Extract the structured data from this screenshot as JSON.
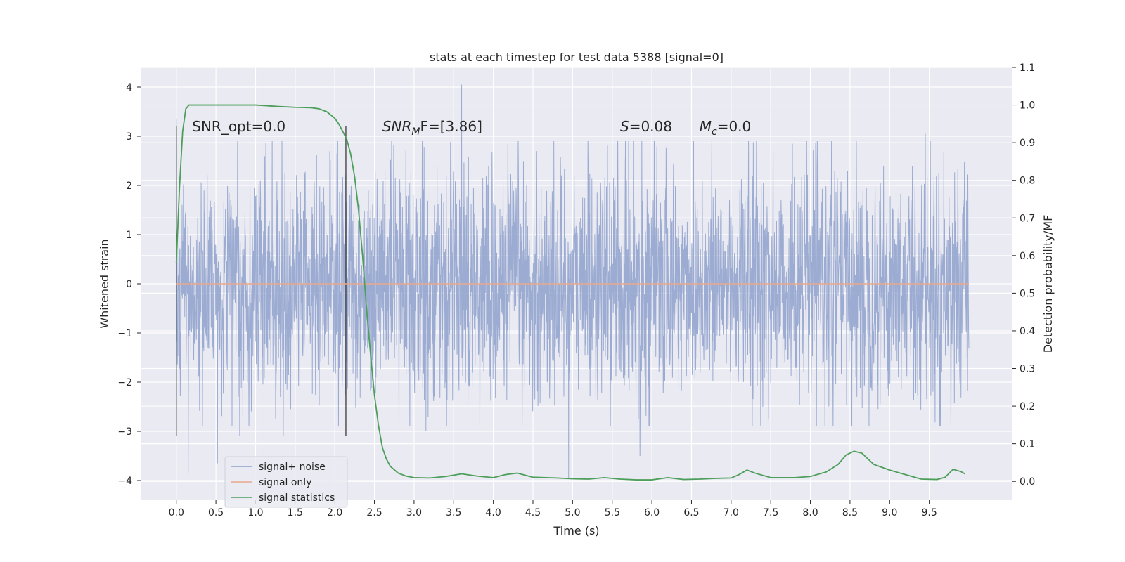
{
  "chart_data": {
    "type": "line",
    "title": "stats at each timestep for test data 5388 [signal=0]",
    "xlabel": "Time (s)",
    "ylabel": "Whitened strain",
    "y2label": "Detection probability/MF",
    "xlim": [
      -0.45,
      10.55
    ],
    "ylim": [
      -4.4,
      4.4
    ],
    "y2lim": [
      -0.05,
      1.1
    ],
    "x_ticks": [
      0.0,
      0.5,
      1.0,
      1.5,
      2.0,
      2.5,
      3.0,
      3.5,
      4.0,
      4.5,
      5.0,
      5.5,
      6.0,
      6.5,
      7.0,
      7.5,
      8.0,
      8.5,
      9.0,
      9.5
    ],
    "x_tick_labels": [
      "0.0",
      "0.5",
      "1.0",
      "1.5",
      "2.0",
      "2.5",
      "3.0",
      "3.5",
      "4.0",
      "4.5",
      "5.0",
      "5.5",
      "6.0",
      "6.5",
      "7.0",
      "7.5",
      "8.0",
      "8.5",
      "9.0",
      "9.5"
    ],
    "y_ticks": [
      -4,
      -3,
      -2,
      -1,
      0,
      1,
      2,
      3,
      4
    ],
    "y_tick_labels": [
      "−4",
      "−3",
      "−2",
      "−1",
      "0",
      "1",
      "2",
      "3",
      "4"
    ],
    "y2_ticks": [
      0.0,
      0.1,
      0.2,
      0.3,
      0.4,
      0.5,
      0.6,
      0.7,
      0.8,
      0.9,
      1.0,
      1.1
    ],
    "y2_tick_labels": [
      "0.0",
      "0.1",
      "0.2",
      "0.3",
      "0.4",
      "0.5",
      "0.6",
      "0.7",
      "0.8",
      "0.9",
      "1.0",
      "1.1"
    ],
    "grid": true,
    "legend": {
      "placement": "lower-left",
      "entries": [
        {
          "name": "signal+ noise",
          "color": "#8da0cb"
        },
        {
          "name": "signal only",
          "color": "#e8a88c"
        },
        {
          "name": "signal statistics",
          "color": "#4c9e5a"
        }
      ]
    },
    "annotations": [
      {
        "prefix": "SNR_opt=0.0",
        "math": "",
        "sub": "",
        "suffix": "",
        "x": 0.2,
        "y": 3.2
      },
      {
        "prefix": "",
        "math": "SNR",
        "sub": "M",
        "suffix": "F=[3.86]",
        "x": 2.6,
        "y": 3.2
      },
      {
        "prefix": "",
        "math": "S",
        "sub": "",
        "suffix": "=0.08",
        "x": 5.6,
        "y": 3.2
      },
      {
        "prefix": "",
        "math": "M",
        "sub": "c",
        "suffix": "=0.0",
        "x": 6.6,
        "y": 3.2
      }
    ],
    "vlines": [
      {
        "x": 0.0,
        "ymin": -3.1,
        "ymax": 3.2
      },
      {
        "x": 2.14,
        "ymin": -3.1,
        "ymax": 3.2
      }
    ],
    "series": [
      {
        "name": "signal+ noise",
        "color": "#8da0cb",
        "x_range": [
          0.0,
          10.0
        ],
        "band_typical": [
          -1.3,
          1.3
        ],
        "notable_peaks": [
          {
            "x": 0.0,
            "y": 3.35
          },
          {
            "x": 3.6,
            "y": 4.05
          },
          {
            "x": 9.45,
            "y": 3.05
          },
          {
            "x": 0.15,
            "y": -3.85
          },
          {
            "x": 0.52,
            "y": -3.65
          },
          {
            "x": 4.95,
            "y": -3.95
          },
          {
            "x": 5.85,
            "y": -3.5
          },
          {
            "x": 0.8,
            "y": -3.1
          },
          {
            "x": 3.15,
            "y": -3.0
          },
          {
            "x": 1.35,
            "y": -3.1
          }
        ]
      },
      {
        "name": "signal only",
        "color": "#e8a88c",
        "x": [
          0.0,
          10.0
        ],
        "y": [
          0.0,
          0.0
        ]
      },
      {
        "name": "signal statistics",
        "color": "#4c9e5a",
        "axis": "right",
        "x": [
          0.0,
          0.04,
          0.08,
          0.12,
          0.16,
          0.2,
          0.3,
          0.5,
          0.8,
          1.0,
          1.3,
          1.5,
          1.7,
          1.8,
          1.9,
          2.0,
          2.05,
          2.1,
          2.15,
          2.2,
          2.25,
          2.3,
          2.35,
          2.4,
          2.45,
          2.5,
          2.55,
          2.6,
          2.65,
          2.7,
          2.8,
          2.9,
          3.0,
          3.2,
          3.4,
          3.6,
          3.8,
          4.0,
          4.15,
          4.3,
          4.5,
          4.8,
          5.0,
          5.2,
          5.4,
          5.6,
          5.8,
          6.0,
          6.2,
          6.4,
          6.6,
          6.8,
          7.0,
          7.1,
          7.2,
          7.3,
          7.5,
          7.8,
          8.0,
          8.2,
          8.35,
          8.45,
          8.55,
          8.65,
          8.8,
          9.0,
          9.2,
          9.4,
          9.6,
          9.7,
          9.8,
          9.9,
          9.95
        ],
        "y": [
          0.58,
          0.78,
          0.93,
          0.99,
          1.0,
          1.0,
          1.0,
          1.0,
          1.0,
          1.0,
          0.996,
          0.994,
          0.993,
          0.99,
          0.982,
          0.965,
          0.95,
          0.93,
          0.91,
          0.87,
          0.81,
          0.72,
          0.6,
          0.46,
          0.34,
          0.23,
          0.15,
          0.09,
          0.06,
          0.04,
          0.022,
          0.014,
          0.01,
          0.009,
          0.013,
          0.02,
          0.014,
          0.01,
          0.018,
          0.022,
          0.011,
          0.009,
          0.007,
          0.006,
          0.01,
          0.006,
          0.004,
          0.004,
          0.01,
          0.005,
          0.006,
          0.008,
          0.009,
          0.018,
          0.03,
          0.022,
          0.01,
          0.01,
          0.013,
          0.025,
          0.045,
          0.07,
          0.08,
          0.075,
          0.045,
          0.03,
          0.018,
          0.006,
          0.005,
          0.011,
          0.032,
          0.026,
          0.02
        ]
      }
    ]
  }
}
